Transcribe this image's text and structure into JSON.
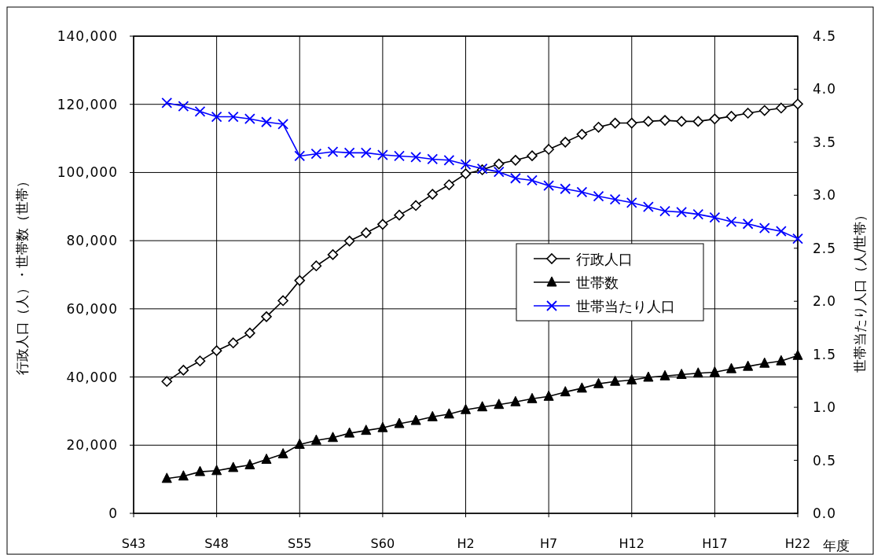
{
  "chart_data": {
    "type": "line",
    "xlabel": "年度",
    "ylabel": "行政人口（人）・世帯数（世帯）",
    "y2label": "世帯当たり人口（人/世帯）",
    "categories": [
      "S43",
      null,
      null,
      null,
      null,
      "S48",
      null,
      null,
      null,
      null,
      "S55",
      null,
      null,
      null,
      null,
      "S60",
      null,
      null,
      null,
      null,
      "H2",
      null,
      null,
      null,
      null,
      "H7",
      null,
      null,
      null,
      null,
      "H12",
      null,
      null,
      null,
      null,
      "H17",
      null,
      null,
      null,
      null,
      "H22"
    ],
    "series": [
      {
        "name": "行政人口",
        "color": "#000000",
        "marker": "diamond",
        "values": [
          null,
          null,
          38700,
          42000,
          44700,
          47700,
          50000,
          52900,
          57700,
          62400,
          68300,
          72600,
          75900,
          79900,
          82300,
          84800,
          87500,
          90300,
          93600,
          96400,
          99600,
          100800,
          102500,
          103600,
          104900,
          106800,
          108900,
          111200,
          113300,
          114500,
          114500,
          115000,
          115300,
          115000,
          115000,
          115700,
          116500,
          117400,
          118200,
          118900,
          120100
        ]
      },
      {
        "name": "世帯数",
        "color": "#000000",
        "marker": "triangle",
        "values": [
          null,
          null,
          10200,
          10900,
          12200,
          12500,
          13400,
          14200,
          15800,
          17400,
          20200,
          21400,
          22200,
          23500,
          24300,
          25100,
          26300,
          27200,
          28300,
          29100,
          30400,
          31200,
          31900,
          32700,
          33600,
          34300,
          35600,
          36700,
          38000,
          38700,
          39100,
          39900,
          40300,
          40700,
          41100,
          41400,
          42400,
          43100,
          44000,
          44700,
          46300
        ]
      },
      {
        "name": "世帯当たり人口",
        "color": "#0000ff",
        "marker": "cross",
        "axis": "y2",
        "values": [
          null,
          null,
          3.87,
          3.84,
          3.79,
          3.74,
          3.74,
          3.72,
          3.69,
          3.67,
          3.37,
          3.39,
          3.41,
          3.4,
          3.4,
          3.38,
          3.37,
          3.36,
          3.34,
          3.33,
          3.29,
          3.25,
          3.22,
          3.16,
          3.14,
          3.09,
          3.06,
          3.03,
          2.99,
          2.96,
          2.93,
          2.89,
          2.85,
          2.84,
          2.82,
          2.79,
          2.75,
          2.73,
          2.69,
          2.66,
          2.59
        ]
      }
    ],
    "ylim": [
      0,
      140000
    ],
    "yticks": [
      {
        "value": 0,
        "label": "0"
      },
      {
        "value": 20000,
        "label": "20,000"
      },
      {
        "value": 40000,
        "label": "40,000"
      },
      {
        "value": 60000,
        "label": "60,000"
      },
      {
        "value": 80000,
        "label": "80,000"
      },
      {
        "value": 100000,
        "label": "100,000"
      },
      {
        "value": 120000,
        "label": "120,000"
      },
      {
        "value": 140000,
        "label": "140,000"
      }
    ],
    "y2lim": [
      0,
      4.5
    ],
    "y2ticks": [
      {
        "value": 0,
        "label": "0.0"
      },
      {
        "value": 0.5,
        "label": "0.5"
      },
      {
        "value": 1,
        "label": "1.0"
      },
      {
        "value": 1.5,
        "label": "1.5"
      },
      {
        "value": 2,
        "label": "2.0"
      },
      {
        "value": 2.5,
        "label": "2.5"
      },
      {
        "value": 3,
        "label": "3.0"
      },
      {
        "value": 3.5,
        "label": "3.5"
      },
      {
        "value": 4,
        "label": "4.0"
      },
      {
        "value": 4.5,
        "label": "4.5"
      }
    ],
    "grid": true,
    "legend": "right",
    "line_style": "solid"
  }
}
